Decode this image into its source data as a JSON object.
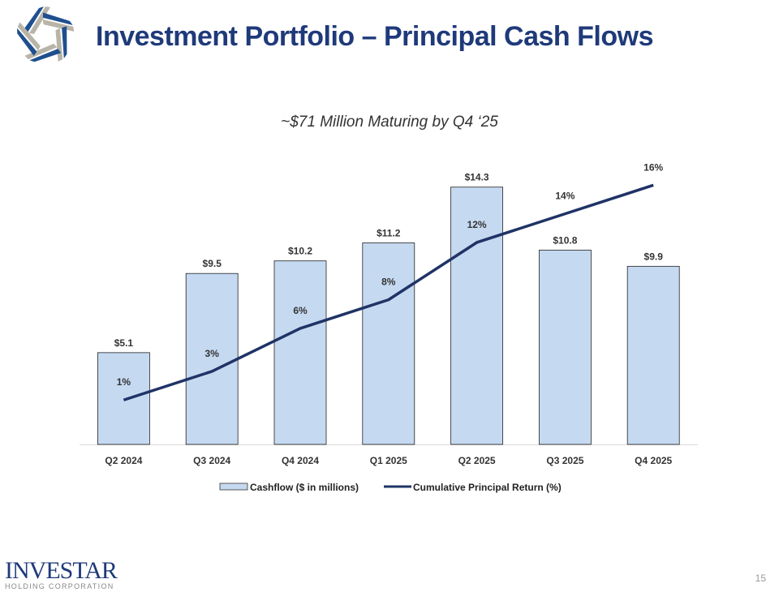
{
  "header": {
    "title": "Investment Portfolio – Principal Cash Flows",
    "logo_icon": "star-logo-icon"
  },
  "footer": {
    "logo_text": "INVESTAR",
    "logo_subtext": "HOLDING CORPORATION",
    "page_number": "15"
  },
  "chart_data": {
    "type": "bar+line",
    "title": "~$71 Million Maturing by Q4 ‘25",
    "categories": [
      "Q2 2024",
      "Q3 2024",
      "Q4 2024",
      "Q1 2025",
      "Q2 2025",
      "Q3 2025",
      "Q4 2025"
    ],
    "series": [
      {
        "name": "Cashflow ($ in millions)",
        "type": "bar",
        "values": [
          5.1,
          9.5,
          10.2,
          11.2,
          14.3,
          10.8,
          9.9
        ],
        "labels": [
          "$5.1",
          "$9.5",
          "$10.2",
          "$11.2",
          "$14.3",
          "$10.8",
          "$9.9"
        ],
        "color": "#c5d9f1",
        "axis": "primary"
      },
      {
        "name": "Cumulative Principal Return (%)",
        "type": "line",
        "values": [
          1,
          3,
          6,
          8,
          12,
          14,
          16
        ],
        "labels": [
          "1%",
          "3%",
          "6%",
          "8%",
          "12%",
          "14%",
          "16%"
        ],
        "color": "#1f3366",
        "axis": "secondary"
      }
    ],
    "ylim": [
      0,
      16
    ],
    "y2lim": [
      -2.1,
      18
    ],
    "grid": false,
    "axes_visible": false,
    "legend": "bottom"
  }
}
